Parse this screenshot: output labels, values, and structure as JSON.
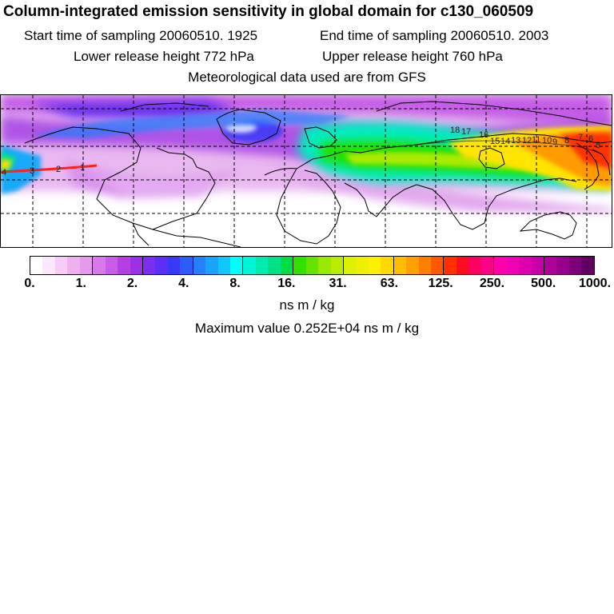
{
  "header": {
    "title": "Column-integrated emission sensitivity in global domain for c130_060509",
    "start_sampling": "Start time of sampling 20060510.  1925",
    "end_sampling": "End time of sampling 20060510.  2003",
    "lower_release": "Lower release height  772 hPa",
    "upper_release": "Upper release height  760 hPa",
    "met_data": "Meteorological data used are from GFS"
  },
  "map": {
    "trajectory_labels_west": [
      "4",
      "3",
      "2",
      "1"
    ],
    "trajectory_labels_east": [
      "18",
      "17",
      "16",
      "15",
      "14",
      "13",
      "12",
      "11",
      "10",
      "9",
      "8",
      "7",
      "6",
      "5"
    ]
  },
  "colorbar": {
    "labels": [
      "0.",
      "1.",
      "2.",
      "4.",
      "8.",
      "16.",
      "31.",
      "63.",
      "125.",
      "250.",
      "500.",
      "1000."
    ],
    "colors": [
      "#ffffff",
      "#fce8fc",
      "#f7ccf7",
      "#efb0f0",
      "#e59aee",
      "#d77ae9",
      "#c75ce6",
      "#b43fe2",
      "#9b30e6",
      "#7c2ef0",
      "#5c2ff5",
      "#3838f7",
      "#2c5cf9",
      "#2281fb",
      "#18a4fc",
      "#10c8fd",
      "#00ffff",
      "#00f5d8",
      "#00ebb0",
      "#00e088",
      "#00dd44",
      "#33e000",
      "#66e400",
      "#99e800",
      "#bbec00",
      "#ddf000",
      "#eef000",
      "#fff000",
      "#ffd800",
      "#ffbe00",
      "#ffa000",
      "#ff7e00",
      "#ff5800",
      "#ff3000",
      "#ff0c20",
      "#ff0060",
      "#ff0088",
      "#ff00aa",
      "#f000b4",
      "#dd00b0",
      "#c800a8",
      "#b0009c",
      "#96008c",
      "#7c0078",
      "#600060"
    ],
    "units": "ns m / kg"
  },
  "footer": {
    "max_value": "Maximum value  0.252E+04 ns m / kg"
  }
}
